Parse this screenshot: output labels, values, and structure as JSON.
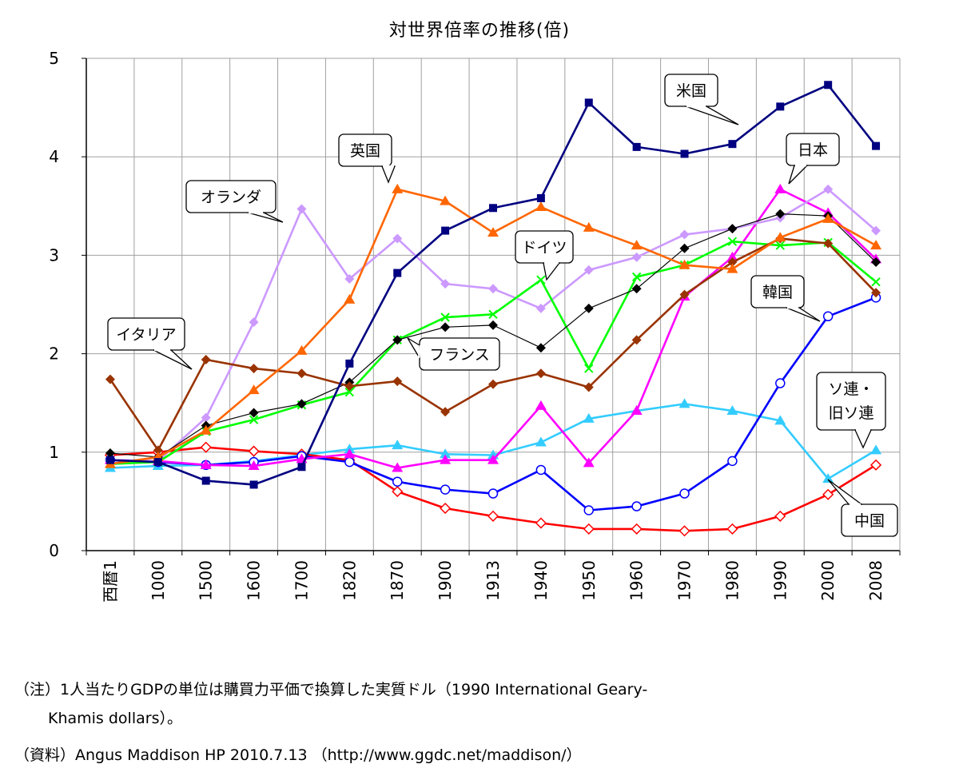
{
  "chart_data": {
    "type": "line",
    "title": "対世界倍率の推移(倍)",
    "categories": [
      "西暦1",
      "1000",
      "1500",
      "1600",
      "1700",
      "1820",
      "1870",
      "1900",
      "1913",
      "1940",
      "1950",
      "1960",
      "1970",
      "1980",
      "1990",
      "2000",
      "2008"
    ],
    "ylim": [
      0,
      5
    ],
    "yticks": [
      "0",
      "1",
      "2",
      "3",
      "4",
      "5"
    ],
    "grid": true,
    "legend": "callouts",
    "series": [
      {
        "name": "米国",
        "color": "#000080",
        "marker": "square",
        "values": [
          0.92,
          0.9,
          0.71,
          0.67,
          0.85,
          1.9,
          2.82,
          3.25,
          3.48,
          3.58,
          4.55,
          4.1,
          4.03,
          4.13,
          4.51,
          4.73,
          4.11
        ]
      },
      {
        "name": "英国",
        "color": "#ff6600",
        "marker": "triangle",
        "values": [
          0.88,
          0.95,
          1.22,
          1.63,
          2.03,
          2.55,
          3.67,
          3.55,
          3.23,
          3.49,
          3.28,
          3.1,
          2.9,
          2.86,
          3.18,
          3.37,
          3.1
        ]
      },
      {
        "name": "オランダ",
        "color": "#cc99ff",
        "marker": "diamond",
        "values": [
          0.92,
          0.91,
          1.35,
          2.32,
          3.47,
          2.76,
          3.17,
          2.71,
          2.66,
          2.46,
          2.85,
          2.98,
          3.21,
          3.27,
          3.38,
          3.67,
          3.25
        ]
      },
      {
        "name": "日本",
        "color": "#ff00ff",
        "marker": "triangle",
        "values": [
          0.92,
          0.91,
          0.87,
          0.86,
          0.93,
          0.98,
          0.84,
          0.92,
          0.92,
          1.47,
          0.89,
          1.42,
          2.58,
          2.98,
          3.67,
          3.43,
          2.96
        ]
      },
      {
        "name": "ドイツ",
        "color": "#00ff00",
        "marker": "x",
        "values": [
          0.88,
          0.9,
          1.21,
          1.33,
          1.48,
          1.61,
          2.14,
          2.37,
          2.4,
          2.75,
          1.85,
          2.78,
          2.9,
          3.14,
          3.1,
          3.13,
          2.73
        ]
      },
      {
        "name": "フランス",
        "color": "#000000",
        "marker": "diamond",
        "values": [
          0.99,
          0.95,
          1.27,
          1.4,
          1.49,
          1.71,
          2.14,
          2.27,
          2.29,
          2.06,
          2.46,
          2.66,
          3.07,
          3.27,
          3.42,
          3.4,
          2.93
        ]
      },
      {
        "name": "イタリア",
        "color": "#993300",
        "marker": "diamond",
        "values": [
          1.74,
          1.02,
          1.94,
          1.85,
          1.8,
          1.67,
          1.72,
          1.41,
          1.69,
          1.8,
          1.66,
          2.14,
          2.6,
          2.93,
          3.17,
          3.12,
          2.62
        ]
      },
      {
        "name": "韓国",
        "color": "#0000ff",
        "marker": "circle",
        "values": [
          0.92,
          0.9,
          0.87,
          0.9,
          0.96,
          0.9,
          0.7,
          0.62,
          0.58,
          0.82,
          0.41,
          0.45,
          0.58,
          0.91,
          1.7,
          2.38,
          2.57
        ]
      },
      {
        "name": "ソ連・旧ソ連",
        "color": "#33ccff",
        "marker": "triangle",
        "values": [
          0.84,
          0.86,
          0.87,
          0.91,
          0.97,
          1.03,
          1.07,
          0.98,
          0.97,
          1.1,
          1.34,
          1.42,
          1.49,
          1.42,
          1.32,
          0.73,
          1.02
        ]
      },
      {
        "name": "中国",
        "color": "#ff0000",
        "marker": "diamond-open",
        "values": [
          0.97,
          1.0,
          1.05,
          1.01,
          0.98,
          0.92,
          0.6,
          0.43,
          0.35,
          0.28,
          0.22,
          0.22,
          0.2,
          0.22,
          0.35,
          0.57,
          0.87
        ]
      }
    ],
    "callouts": [
      {
        "series": 0,
        "label": "米国"
      },
      {
        "series": 1,
        "label": "英国"
      },
      {
        "series": 2,
        "label": "オランダ"
      },
      {
        "series": 3,
        "label": "日本"
      },
      {
        "series": 4,
        "label": "ドイツ"
      },
      {
        "series": 5,
        "label": "フランス"
      },
      {
        "series": 6,
        "label": "イタリア"
      },
      {
        "series": 7,
        "label": "韓国"
      },
      {
        "series": 8,
        "label": "ソ連・旧ソ連",
        "lines": [
          "ソ連・",
          "旧ソ連"
        ]
      },
      {
        "series": 9,
        "label": "中国"
      }
    ]
  },
  "notes": {
    "note1": "（注）1人当たりGDPの単位は購買力平価で換算した実質ドル（1990 International Geary-",
    "note1b": "Khamis dollars）。",
    "note2": "（資料）Angus Maddison HP 2010.7.13 （http://www.ggdc.net/maddison/）"
  }
}
